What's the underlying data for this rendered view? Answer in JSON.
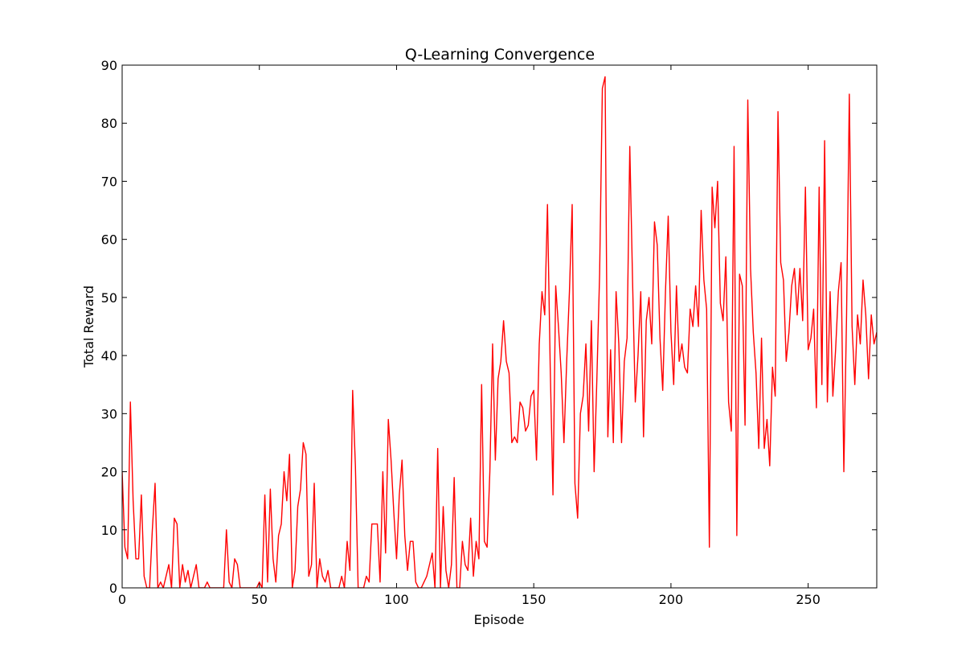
{
  "chart_data": {
    "type": "line",
    "title": "Q-Learning Convergence",
    "xlabel": "Episode",
    "ylabel": "Total Reward",
    "xlim": [
      0,
      275
    ],
    "ylim": [
      0,
      90
    ],
    "xticks": [
      0,
      50,
      100,
      150,
      200,
      250
    ],
    "yticks": [
      0,
      10,
      20,
      30,
      40,
      50,
      60,
      70,
      80,
      90
    ],
    "grid": false,
    "line_color": "#ff0000",
    "series": [
      {
        "values": [
          20,
          7,
          5,
          32,
          15,
          5,
          5,
          16,
          2,
          0,
          0,
          10,
          18,
          0,
          1,
          0,
          2,
          4,
          0,
          12,
          11,
          0,
          4,
          1,
          3,
          0,
          2,
          4,
          0,
          0,
          0,
          1,
          0,
          0,
          0,
          0,
          0,
          0,
          10,
          1,
          0,
          5,
          4,
          0,
          0,
          0,
          0,
          0,
          0,
          0,
          1,
          0,
          16,
          1,
          17,
          5,
          1,
          9,
          11,
          20,
          15,
          23,
          0,
          3,
          14,
          17,
          25,
          23,
          2,
          4,
          18,
          0,
          5,
          2,
          1,
          3,
          0,
          0,
          0,
          0,
          2,
          0,
          8,
          3,
          34,
          21,
          0,
          0,
          0,
          2,
          1,
          11,
          11,
          11,
          1,
          20,
          6,
          29,
          22,
          13,
          5,
          16,
          22,
          9,
          3,
          8,
          8,
          1,
          0,
          0,
          1,
          2,
          4,
          6,
          0,
          24,
          0,
          14,
          3,
          0,
          4,
          19,
          0,
          0,
          8,
          4,
          3,
          12,
          2,
          8,
          5,
          35,
          8,
          7,
          20,
          42,
          22,
          36,
          39,
          46,
          39,
          37,
          25,
          26,
          25,
          32,
          31,
          27,
          28,
          33,
          34,
          22,
          42,
          51,
          47,
          66,
          38,
          16,
          52,
          45,
          37,
          25,
          39,
          51,
          66,
          18,
          12,
          30,
          33,
          42,
          27,
          46,
          20,
          36,
          54,
          86,
          88,
          26,
          41,
          25,
          51,
          42,
          25,
          39,
          43,
          76,
          53,
          32,
          40,
          51,
          26,
          46,
          50,
          42,
          63,
          59,
          43,
          34,
          51,
          64,
          44,
          35,
          52,
          39,
          42,
          38,
          37,
          48,
          45,
          52,
          45,
          65,
          53,
          48,
          7,
          69,
          62,
          70,
          49,
          46,
          57,
          32,
          27,
          76,
          9,
          54,
          52,
          28,
          84,
          55,
          44,
          37,
          24,
          43,
          24,
          29,
          21,
          38,
          33,
          82,
          56,
          53,
          39,
          44,
          52,
          55,
          47,
          55,
          46,
          69,
          41,
          43,
          48,
          31,
          69,
          35,
          77,
          32,
          51,
          33,
          41,
          51,
          56,
          20,
          47,
          85,
          45,
          35,
          47,
          42,
          53,
          47,
          36,
          47,
          42,
          44
        ]
      }
    ]
  }
}
